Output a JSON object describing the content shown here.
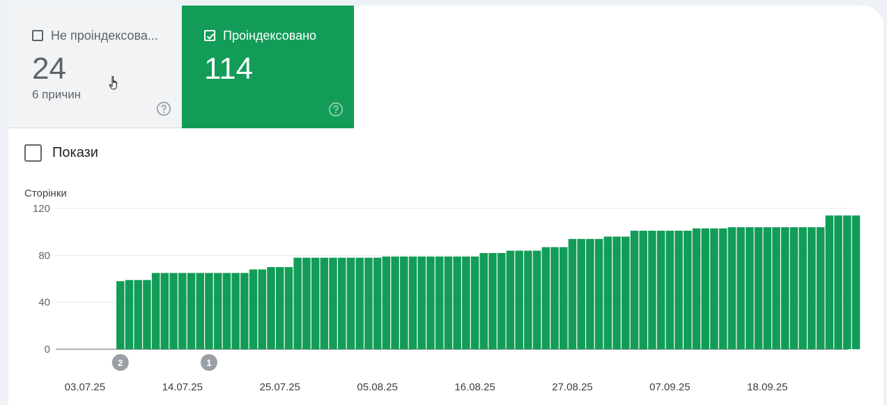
{
  "tiles": {
    "not_indexed": {
      "label": "Не проіндексова...",
      "value": "24",
      "sub": "6 причин"
    },
    "indexed": {
      "label": "Проіндексовано",
      "value": "114"
    }
  },
  "impressions": {
    "label": "Покази"
  },
  "colors": {
    "bar": "#129c58",
    "tile_active": "#129c58",
    "marker": "#9aa0a6"
  },
  "chart_data": {
    "type": "bar",
    "ylabel": "Сторінки",
    "ylim": [
      0,
      120
    ],
    "yticks": [
      0,
      40,
      80,
      120
    ],
    "xtick_labels": [
      "03.07.25",
      "14.07.25",
      "25.07.25",
      "05.08.25",
      "16.08.25",
      "27.08.25",
      "07.09.25",
      "18.09.25"
    ],
    "first_date": "03.07.25",
    "values": [
      0,
      0,
      0,
      0,
      58,
      59,
      59,
      59,
      65,
      65,
      65,
      65,
      65,
      65,
      65,
      65,
      65,
      65,
      65,
      68,
      68,
      70,
      70,
      70,
      78,
      78,
      78,
      78,
      78,
      78,
      78,
      78,
      78,
      78,
      79,
      79,
      79,
      79,
      79,
      79,
      79,
      79,
      79,
      79,
      79,
      82,
      82,
      82,
      84,
      84,
      84,
      84,
      87,
      87,
      87,
      94,
      94,
      94,
      94,
      96,
      96,
      96,
      101,
      101,
      101,
      101,
      101,
      101,
      101,
      103,
      103,
      103,
      103,
      104,
      104,
      104,
      104,
      104,
      104,
      104,
      104,
      104,
      104,
      104,
      114,
      114,
      114,
      114
    ],
    "annotations": [
      {
        "label": "2",
        "date": "07.07.25"
      },
      {
        "label": "1",
        "date": "17.07.25"
      }
    ]
  }
}
